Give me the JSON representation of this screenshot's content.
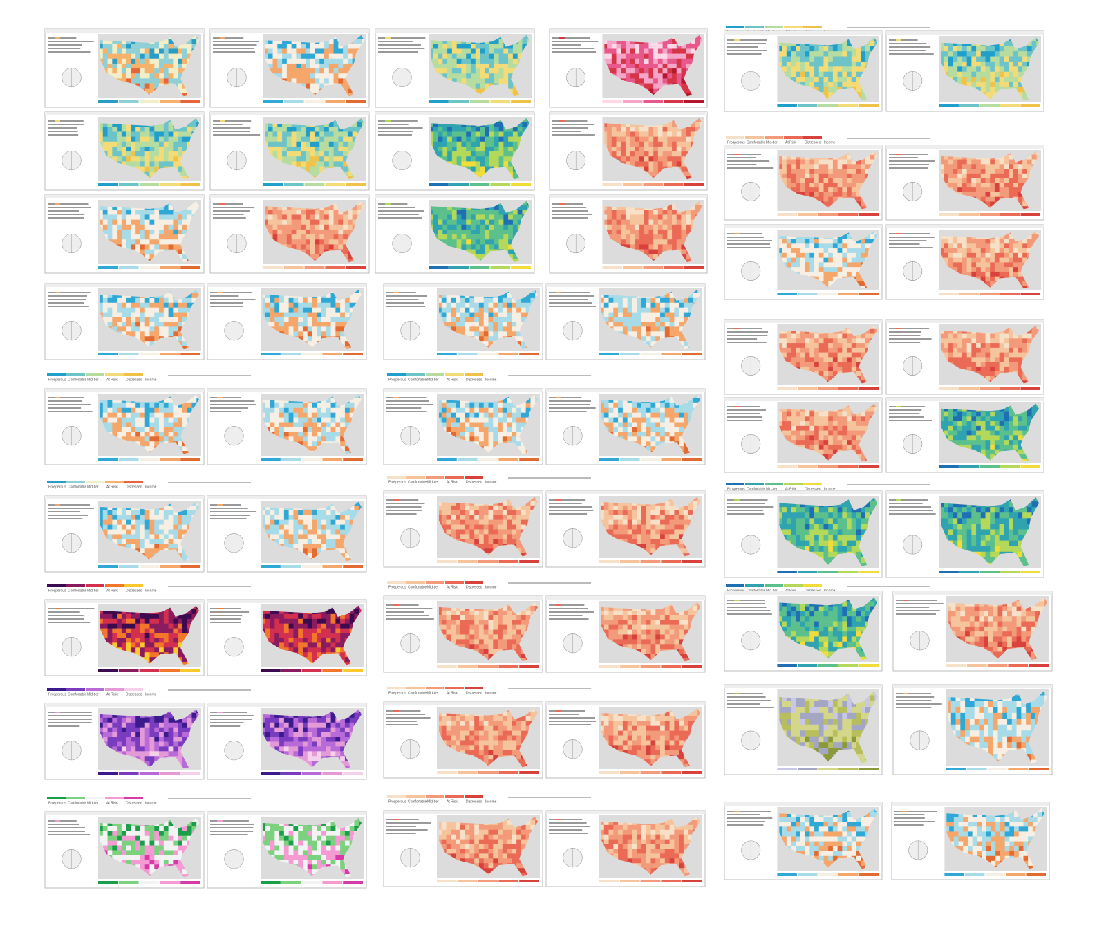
{
  "legend": {
    "labels": [
      "Prosperous",
      "Comfortable",
      "Mid-tier",
      "At Risk",
      "Distressed",
      "Income"
    ]
  },
  "palettes": [
    [
      "#2a9dc4",
      "#8fd0d6",
      "#f2efc8",
      "#f6b26b",
      "#e8643c"
    ],
    [
      "#1f9fc9",
      "#6cc3c8",
      "#b6dca0",
      "#f3dc77",
      "#f0c24a"
    ],
    [
      "#2fa8d6",
      "#a8dbe8",
      "#f7efe3",
      "#f5a66b",
      "#e36b32"
    ],
    [
      "#f7e0c8",
      "#f6c49c",
      "#f29a7a",
      "#ea6a56",
      "#d8423d"
    ],
    [
      "#3b0a4f",
      "#8a1b5e",
      "#d2304e",
      "#f2772a",
      "#fbc92c"
    ],
    [
      "#3a1a8c",
      "#7a3cbf",
      "#b86ad8",
      "#e39ad6",
      "#f5d0ea"
    ],
    [
      "#1b9e4a",
      "#7cd17f",
      "#f3f3f3",
      "#f59ad3",
      "#d63aa6"
    ],
    [
      "#1f6fb4",
      "#2fa4b0",
      "#5cc08c",
      "#b4d95a",
      "#f2dc3a"
    ],
    [
      "#c9c7e6",
      "#a4a6c6",
      "#d4d68a",
      "#b8bf5a",
      "#8a9a3a"
    ],
    [
      "#ffd8e8",
      "#f5a6c8",
      "#e8588a",
      "#d63548",
      "#b5172e"
    ]
  ]
}
